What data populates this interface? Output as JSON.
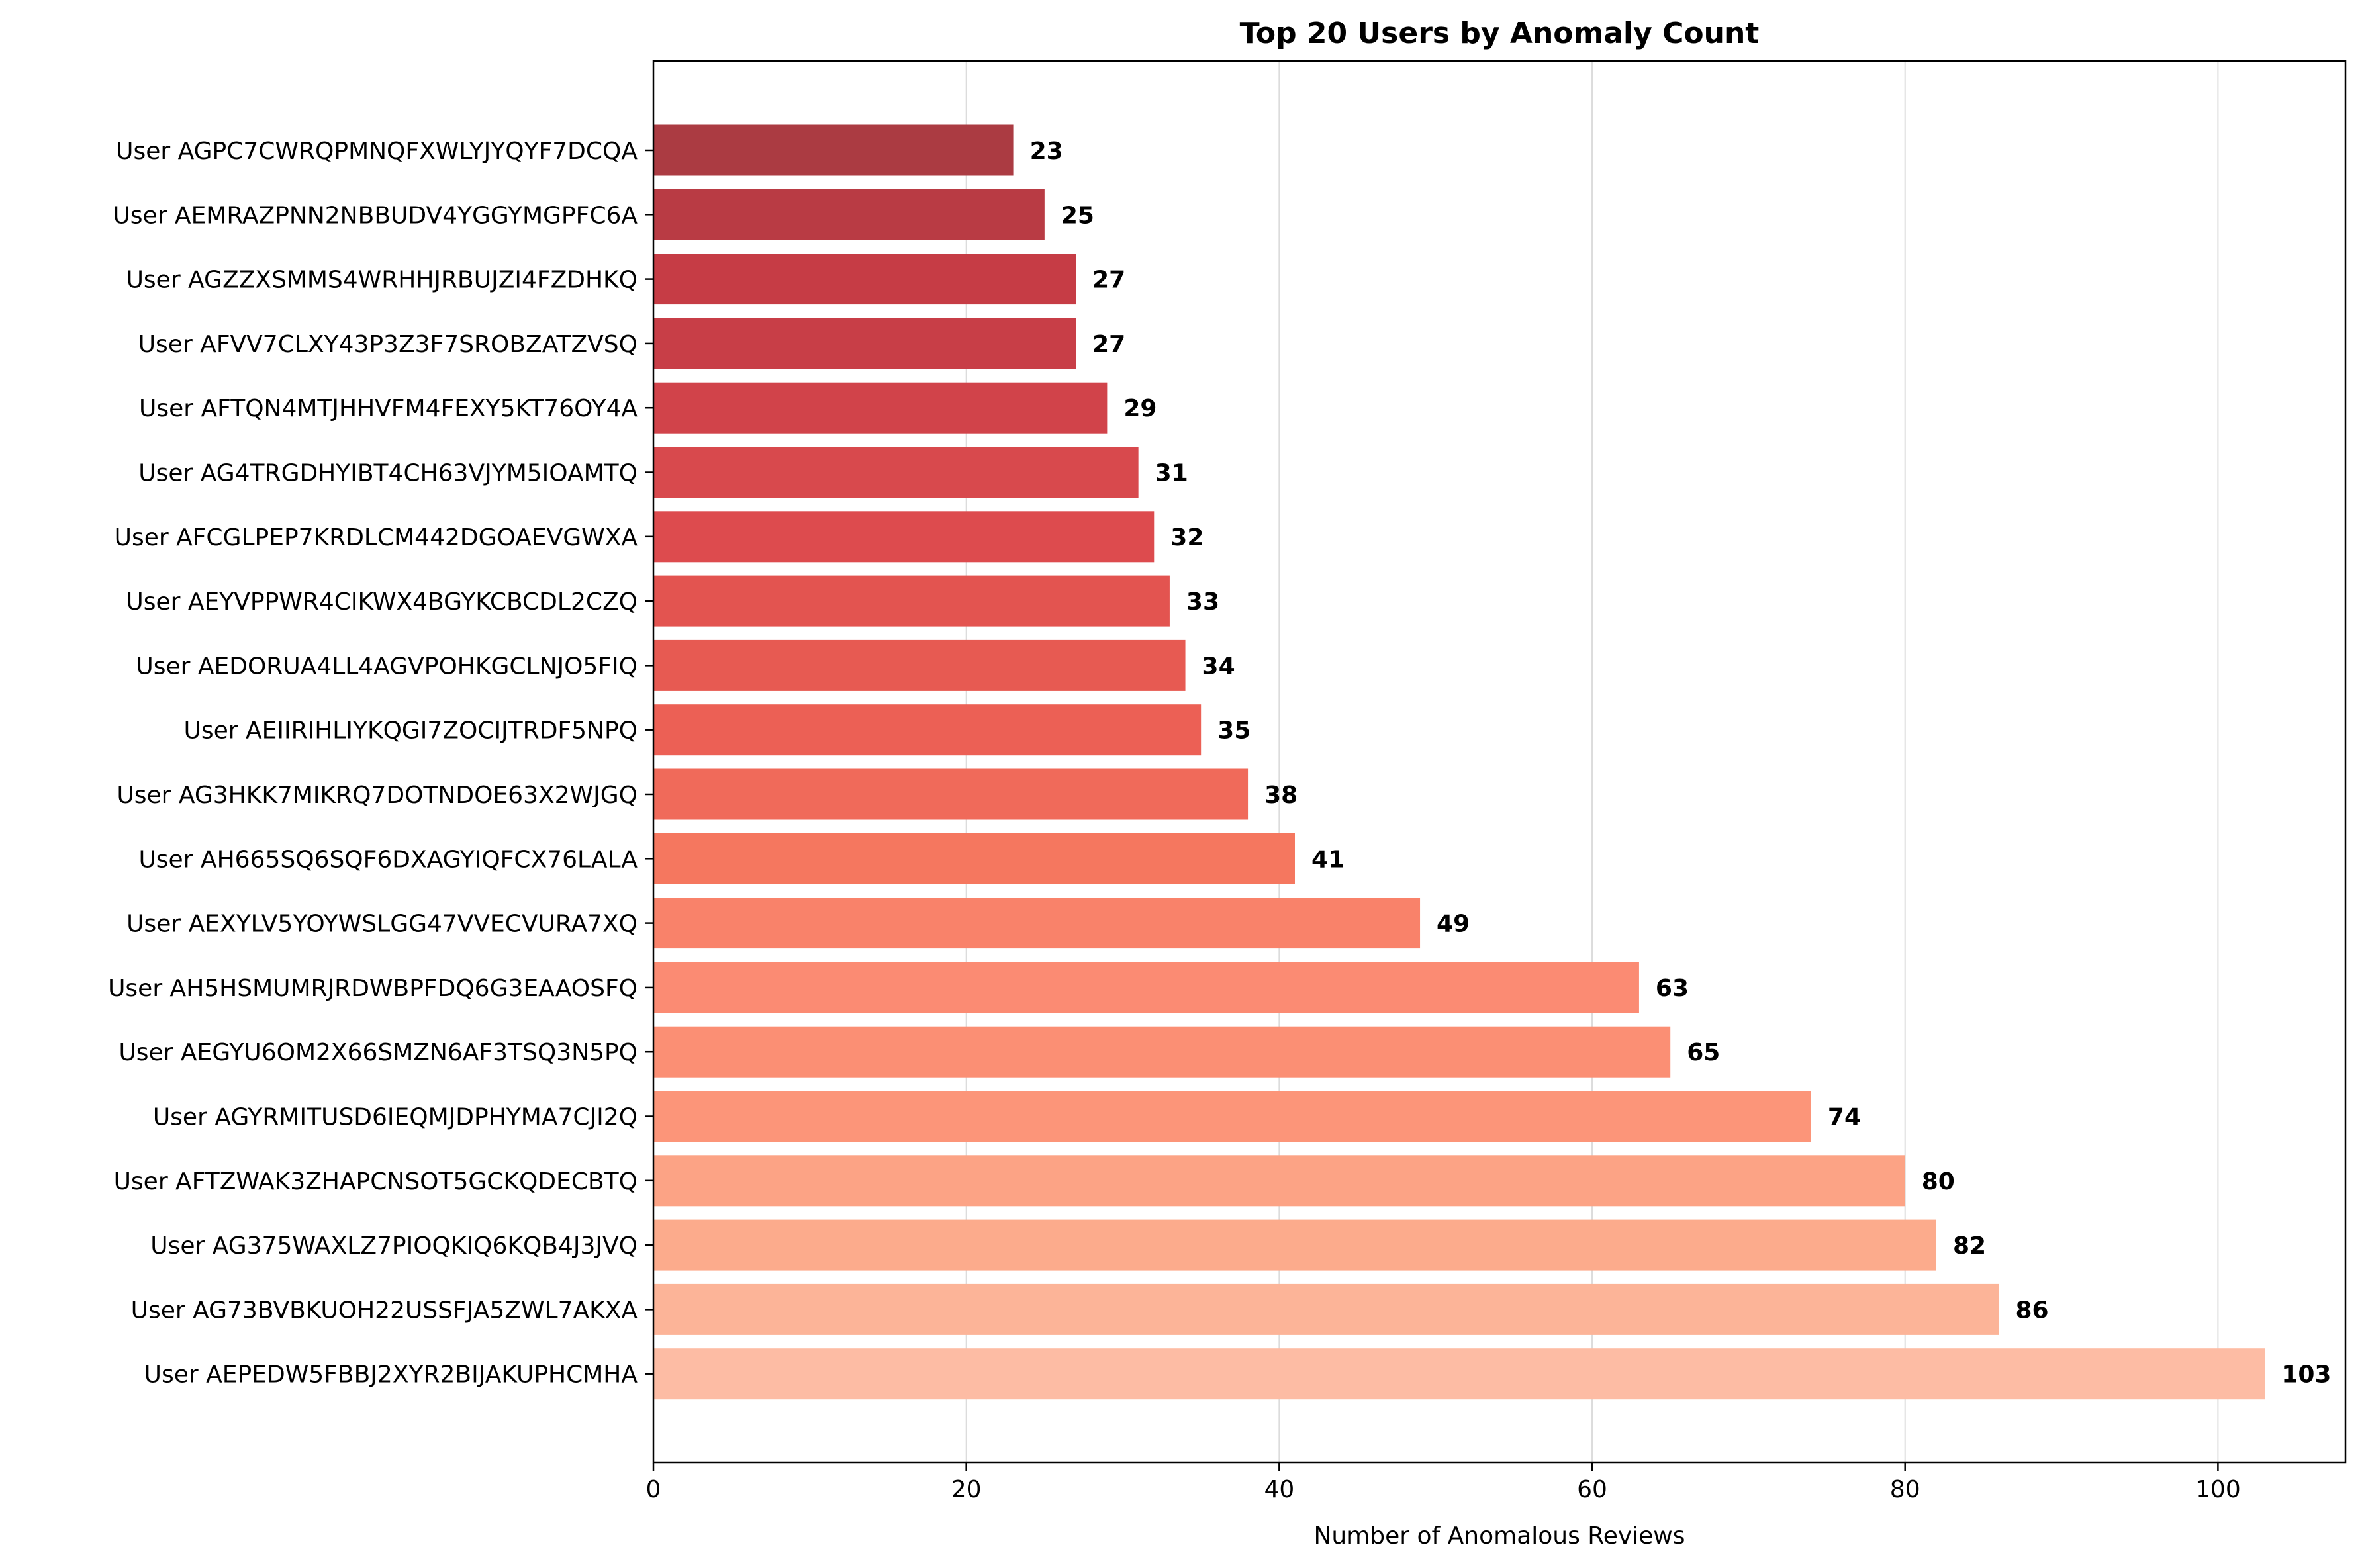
{
  "chart_data": {
    "type": "bar",
    "orientation": "horizontal",
    "title": "Top 20 Users by Anomaly Count",
    "xlabel": "Number of Anomalous Reviews",
    "ylabel": "",
    "xlim": [
      0,
      108.15
    ],
    "xticks": [
      0,
      20,
      40,
      60,
      80,
      100
    ],
    "grid": "vertical",
    "categories": [
      "User AGPC7CWRQPMNQFXWLYJYQYF7DCQA",
      "User AEMRAZPNN2NBBUDV4YGGYMGPFC6A",
      "User AGZZXSMMS4WRHHJRBUJZI4FZDHKQ",
      "User AFVV7CLXY43P3Z3F7SROBZATZVSQ",
      "User AFTQN4MTJHHVFM4FEXY5KT76OY4A",
      "User AG4TRGDHYIBT4CH63VJYM5IOAMTQ",
      "User AFCGLPEP7KRDLCM442DGOAEVGWXA",
      "User AEYVPPWR4CIKWX4BGYKCBCDL2CZQ",
      "User AEDORUA4LL4AGVPOHKGCLNJO5FIQ",
      "User AEIIRIHLIYKQGI7ZOCIJTRDF5NPQ",
      "User AG3HKK7MIKRQ7DOTNDOE63X2WJGQ",
      "User AH665SQ6SQF6DXAGYIQFCX76LALA",
      "User AEXYLV5YOYWSLGG47VVECVURA7XQ",
      "User AH5HSMUMRJRDWBPFDQ6G3EAAOSFQ",
      "User AEGYU6OM2X66SMZN6AF3TSQ3N5PQ",
      "User AGYRMITUSD6IEQMJDPHYMA7CJI2Q",
      "User AFTZWAK3ZHAPCNSOT5GCKQDECBTQ",
      "User AG375WAXLZ7PIOQKIQ6KQB4J3JVQ",
      "User AG73BVBKUOH22USSFJA5ZWL7AKXA",
      "User AEPEDW5FBBJ2XYR2BIJAKUPHCMHA"
    ],
    "values": [
      23,
      25,
      27,
      27,
      29,
      31,
      32,
      33,
      34,
      35,
      38,
      41,
      49,
      63,
      65,
      74,
      80,
      82,
      86,
      103
    ],
    "colors": [
      "#ab3b42",
      "#b93b44",
      "#c63c45",
      "#c83e47",
      "#d1434a",
      "#d8494d",
      "#dd4b4e",
      "#e35450",
      "#e75a52",
      "#ec6055",
      "#f06a5a",
      "#f5775f",
      "#f9826a",
      "#fb8b73",
      "#fb8f74",
      "#fc9579",
      "#fca385",
      "#fcab8c",
      "#fcb498",
      "#fdbca4"
    ]
  }
}
